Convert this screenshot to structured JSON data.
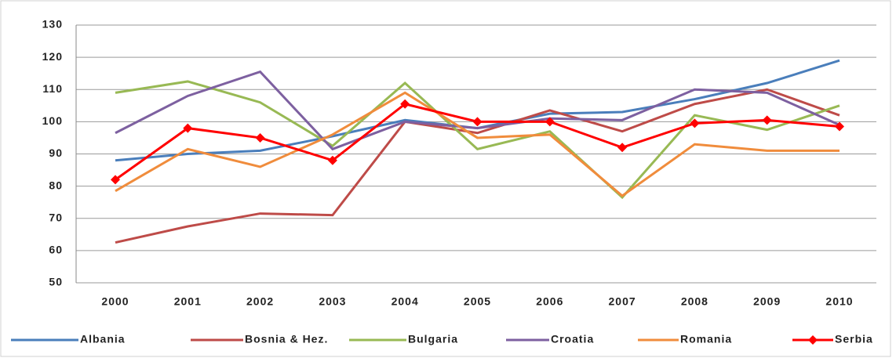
{
  "chart_data": {
    "type": "line",
    "categories": [
      "2000",
      "2001",
      "2002",
      "2003",
      "2004",
      "2005",
      "2006",
      "2007",
      "2008",
      "2009",
      "2010"
    ],
    "ylim": [
      50,
      130
    ],
    "yticks": [
      50,
      60,
      70,
      80,
      90,
      100,
      110,
      120,
      130
    ],
    "grid": true,
    "legend": "bottom",
    "series": [
      {
        "name": "Albania",
        "color": "#4a7ebb",
        "values": [
          88,
          90,
          91,
          95.5,
          100.5,
          98,
          102.5,
          103,
          107,
          112,
          119
        ]
      },
      {
        "name": "Bosnia & Hez.",
        "color": "#be4b48",
        "values": [
          62.5,
          67.5,
          71.5,
          71,
          100,
          96.5,
          103.5,
          97,
          105.5,
          110,
          102
        ]
      },
      {
        "name": "Bulgaria",
        "color": "#98b954",
        "values": [
          109,
          112.5,
          106,
          92.5,
          112,
          91.5,
          97,
          76.5,
          102,
          97.5,
          105
        ]
      },
      {
        "name": "Croatia",
        "color": "#7d60a0",
        "values": [
          96.5,
          108,
          115.5,
          91.5,
          100,
          98,
          101,
          100.5,
          110,
          109,
          99
        ]
      },
      {
        "name": "Romania",
        "color": "#f08c3c",
        "values": [
          78.5,
          91.5,
          86,
          96,
          109,
          95,
          96,
          77,
          93,
          91,
          91
        ]
      },
      {
        "name": "Serbia",
        "color": "#ff0000",
        "marker": "diamond",
        "values": [
          82,
          98,
          95,
          88,
          105.5,
          100,
          100,
          92,
          99.5,
          100.5,
          98.5
        ]
      }
    ]
  }
}
